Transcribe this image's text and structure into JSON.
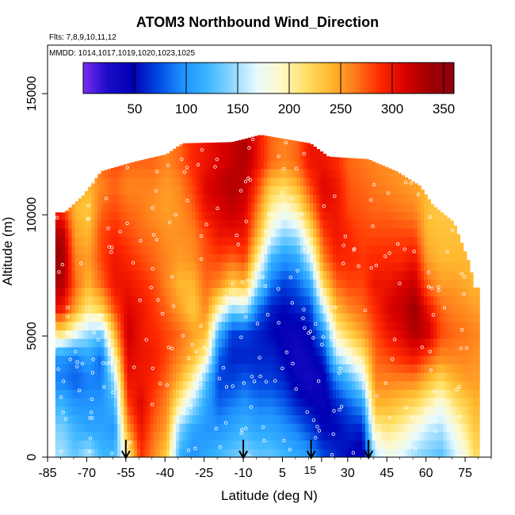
{
  "chart_data": {
    "type": "heatmap",
    "title": "ATOM3 Northbound Wind_Direction",
    "subtitle_flights": "Flts: 7,8,9,10,11,12",
    "subtitle_dates": "MMDD: 1014,1017,1019,1020,1023,1025",
    "xlabel": "Latitude (deg N)",
    "ylabel": "Altitude (m)",
    "xlim": [
      -85,
      85
    ],
    "ylim": [
      0,
      17000
    ],
    "x_ticks": [
      -85,
      -70,
      -55,
      -40,
      -25,
      -10,
      5,
      20,
      30,
      45,
      60,
      75
    ],
    "x_tick_labels": [
      "-85",
      "-70",
      "-55",
      "-40",
      "-25",
      "-10",
      "5",
      "",
      "30",
      "45",
      "60",
      "75"
    ],
    "y_ticks": [
      0,
      5000,
      10000,
      15000
    ],
    "y_tick_labels": [
      "0",
      "5000",
      "10000",
      "15000"
    ],
    "x_overlay_label": "15",
    "colorbar": {
      "min": 0,
      "max": 360,
      "ticks": [
        50,
        100,
        150,
        200,
        250,
        300,
        350
      ],
      "colors": [
        "#7b2cf0",
        "#1a0bc8",
        "#0000b4",
        "#0045e0",
        "#1e90ff",
        "#38b4ff",
        "#8cd6ff",
        "#e6faff",
        "#fff8c8",
        "#ffe066",
        "#ffb82e",
        "#ff7a1a",
        "#ff2a00",
        "#d90000",
        "#a00000",
        "#8c0012"
      ]
    },
    "profile_markers_lat": [
      -55,
      -10,
      16,
      38
    ],
    "altitude_top_by_lat": [
      [
        -79,
        10100
      ],
      [
        -72,
        10800
      ],
      [
        -65,
        11800
      ],
      [
        -52,
        12200
      ],
      [
        -40,
        12500
      ],
      [
        -34,
        12950
      ],
      [
        -15,
        13000
      ],
      [
        -4,
        13300
      ],
      [
        15,
        12950
      ],
      [
        22,
        12400
      ],
      [
        37,
        12300
      ],
      [
        48,
        11800
      ],
      [
        57,
        11200
      ],
      [
        62,
        10400
      ],
      [
        70,
        9700
      ],
      [
        76,
        8000
      ],
      [
        78,
        7000
      ]
    ],
    "wind_direction_columns": [
      {
        "lat": -80,
        "values": [
          150,
          140,
          120,
          90,
          100,
          220,
          300,
          330,
          340,
          330,
          290,
          260,
          250
        ]
      },
      {
        "lat": -75,
        "values": [
          130,
          120,
          100,
          80,
          90,
          180,
          250,
          270,
          260,
          250,
          240,
          250,
          260
        ]
      },
      {
        "lat": -70,
        "values": [
          150,
          110,
          100,
          90,
          110,
          150,
          210,
          240,
          250,
          240,
          230,
          240,
          250
        ]
      },
      {
        "lat": -65,
        "values": [
          120,
          110,
          100,
          90,
          80,
          140,
          230,
          270,
          280,
          280,
          270,
          260,
          270
        ]
      },
      {
        "lat": -60,
        "values": [
          120,
          100,
          120,
          150,
          200,
          240,
          280,
          300,
          300,
          290,
          280,
          270,
          280
        ]
      },
      {
        "lat": -55,
        "values": [
          200,
          250,
          280,
          300,
          310,
          320,
          310,
          300,
          290,
          280,
          270,
          260,
          270
        ]
      },
      {
        "lat": -50,
        "values": [
          290,
          300,
          310,
          300,
          300,
          300,
          300,
          290,
          280,
          270,
          265,
          260,
          270
        ]
      },
      {
        "lat": -45,
        "values": [
          260,
          270,
          280,
          290,
          295,
          290,
          285,
          280,
          270,
          265,
          255,
          260,
          270
        ]
      },
      {
        "lat": -40,
        "values": [
          230,
          250,
          260,
          270,
          280,
          280,
          270,
          260,
          260,
          255,
          250,
          250,
          260
        ]
      },
      {
        "lat": -35,
        "values": [
          120,
          140,
          200,
          240,
          260,
          270,
          250,
          240,
          250,
          255,
          255,
          260,
          270
        ]
      },
      {
        "lat": -30,
        "values": [
          100,
          110,
          150,
          200,
          240,
          250,
          230,
          240,
          255,
          260,
          270,
          280,
          290
        ]
      },
      {
        "lat": -25,
        "values": [
          110,
          100,
          110,
          130,
          200,
          240,
          260,
          270,
          275,
          280,
          300,
          310,
          300
        ]
      },
      {
        "lat": -20,
        "values": [
          120,
          100,
          80,
          70,
          80,
          120,
          200,
          260,
          280,
          300,
          310,
          320,
          310
        ]
      },
      {
        "lat": -15,
        "values": [
          130,
          110,
          90,
          70,
          60,
          70,
          150,
          230,
          270,
          300,
          320,
          330,
          320
        ]
      },
      {
        "lat": -10,
        "values": [
          140,
          120,
          100,
          80,
          60,
          70,
          160,
          240,
          280,
          300,
          310,
          320,
          330
        ]
      },
      {
        "lat": -5,
        "values": [
          130,
          110,
          90,
          70,
          60,
          60,
          90,
          150,
          200,
          240,
          260,
          280,
          300
        ]
      },
      {
        "lat": 0,
        "values": [
          130,
          110,
          90,
          70,
          60,
          50,
          60,
          90,
          120,
          170,
          200,
          230,
          270
        ]
      },
      {
        "lat": 5,
        "values": [
          120,
          100,
          80,
          60,
          50,
          40,
          50,
          70,
          100,
          140,
          180,
          220,
          260
        ]
      },
      {
        "lat": 10,
        "values": [
          110,
          90,
          60,
          40,
          30,
          40,
          60,
          80,
          110,
          150,
          200,
          240,
          270
        ]
      },
      {
        "lat": 15,
        "values": [
          100,
          70,
          50,
          30,
          40,
          50,
          70,
          110,
          160,
          210,
          250,
          280,
          300
        ]
      },
      {
        "lat": 20,
        "values": [
          70,
          50,
          40,
          40,
          60,
          100,
          160,
          220,
          260,
          280,
          300,
          310,
          300
        ]
      },
      {
        "lat": 25,
        "values": [
          60,
          50,
          60,
          90,
          150,
          200,
          240,
          270,
          290,
          300,
          300,
          300,
          290
        ]
      },
      {
        "lat": 30,
        "values": [
          50,
          60,
          80,
          120,
          180,
          230,
          260,
          280,
          290,
          290,
          280,
          275,
          270
        ]
      },
      {
        "lat": 35,
        "values": [
          40,
          60,
          100,
          160,
          210,
          250,
          270,
          280,
          285,
          280,
          275,
          270,
          265
        ]
      },
      {
        "lat": 40,
        "values": [
          160,
          200,
          240,
          260,
          270,
          280,
          290,
          300,
          290,
          280,
          270,
          265,
          260
        ]
      },
      {
        "lat": 45,
        "values": [
          180,
          210,
          240,
          260,
          280,
          300,
          310,
          300,
          290,
          280,
          270,
          260,
          255
        ]
      },
      {
        "lat": 50,
        "values": [
          170,
          200,
          230,
          260,
          290,
          310,
          320,
          310,
          290,
          280,
          265,
          255,
          250
        ]
      },
      {
        "lat": 55,
        "values": [
          150,
          180,
          220,
          260,
          300,
          330,
          340,
          320,
          300,
          280,
          260,
          250,
          245
        ]
      },
      {
        "lat": 60,
        "values": [
          140,
          160,
          200,
          240,
          280,
          320,
          300,
          270,
          250,
          240,
          235,
          240,
          240
        ]
      },
      {
        "lat": 65,
        "values": [
          130,
          150,
          180,
          220,
          260,
          280,
          270,
          250,
          240,
          235,
          230,
          235,
          240
        ]
      },
      {
        "lat": 70,
        "values": [
          160,
          180,
          210,
          240,
          260,
          270,
          260,
          250,
          240,
          235,
          230,
          230,
          235
        ]
      },
      {
        "lat": 75,
        "values": [
          190,
          210,
          230,
          250,
          260,
          265,
          255,
          245,
          240,
          235,
          230,
          230,
          230
        ]
      },
      {
        "lat": 78,
        "values": [
          220,
          230,
          240,
          250,
          255,
          260,
          250,
          240,
          235,
          230,
          230,
          230,
          230
        ]
      }
    ]
  }
}
